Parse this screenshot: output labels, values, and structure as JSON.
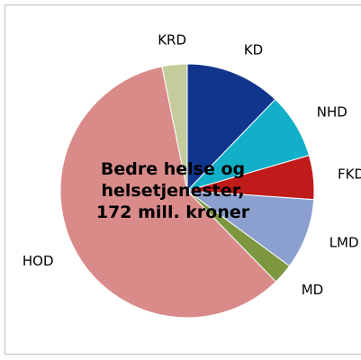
{
  "chart_data": {
    "type": "pie",
    "title": [
      "Bedre helse og",
      "helsetjenester,",
      "172 mill. kroner"
    ],
    "categories": [
      "KD",
      "NHD",
      "FKD",
      "LMD",
      "MD",
      "HOD",
      "KRD"
    ],
    "values": [
      12.2,
      8.3,
      5.6,
      9,
      2.6,
      59.1,
      3.2
    ],
    "colors": [
      "#10358c",
      "#12afc8",
      "#bf1b1b",
      "#8ba0cf",
      "#7d9640",
      "#d98b8a",
      "#c4cc9b"
    ]
  }
}
